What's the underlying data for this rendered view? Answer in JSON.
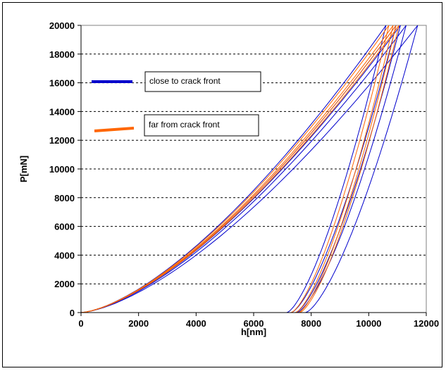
{
  "chart_data": {
    "type": "line",
    "title": "",
    "xlabel": "h[nm]",
    "ylabel": "P[mN]",
    "xlim": [
      0,
      12000
    ],
    "ylim": [
      0,
      20000
    ],
    "x_ticks": [
      0,
      2000,
      4000,
      6000,
      8000,
      10000,
      12000
    ],
    "x_tick_labels": [
      "0",
      "2000",
      "4000",
      "6000",
      "8000",
      "10000",
      "12000"
    ],
    "y_ticks": [
      0,
      2000,
      4000,
      6000,
      8000,
      10000,
      12000,
      14000,
      16000,
      18000,
      20000
    ],
    "y_tick_labels": [
      "0",
      "2000",
      "4000",
      "6000",
      "8000",
      "10000",
      "12000",
      "14000",
      "16000",
      "18000",
      "20000"
    ],
    "grid": "horizontal dashed",
    "legend_placement": "top-left inside",
    "legend": [
      {
        "label": "close to crack front",
        "color": "#0000cc"
      },
      {
        "label": "far from crack front",
        "color": "#ff6600"
      }
    ],
    "series": [
      {
        "name": "close to crack front",
        "color": "#0000cc",
        "curves": [
          {
            "max_x": 10600,
            "residual_x": 7150,
            "load_k": 0.00044
          },
          {
            "max_x": 10950,
            "residual_x": 7300,
            "load_k": 0.00046
          },
          {
            "max_x": 11300,
            "residual_x": 7500,
            "load_k": 0.00048
          },
          {
            "max_x": 11700,
            "residual_x": 7800,
            "load_k": 0.0005
          },
          {
            "max_x": 11100,
            "residual_x": 7450,
            "load_k": 0.00047
          }
        ]
      },
      {
        "name": "far from crack front",
        "color": "#ff6600",
        "curves": [
          {
            "max_x": 10700,
            "residual_x": 7300,
            "load_k": 0.00043
          },
          {
            "max_x": 10850,
            "residual_x": 7450,
            "load_k": 0.000445
          },
          {
            "max_x": 10950,
            "residual_x": 7550,
            "load_k": 0.000455
          },
          {
            "max_x": 11050,
            "residual_x": 7600,
            "load_k": 0.000465
          }
        ]
      }
    ],
    "p_max": 20000
  }
}
